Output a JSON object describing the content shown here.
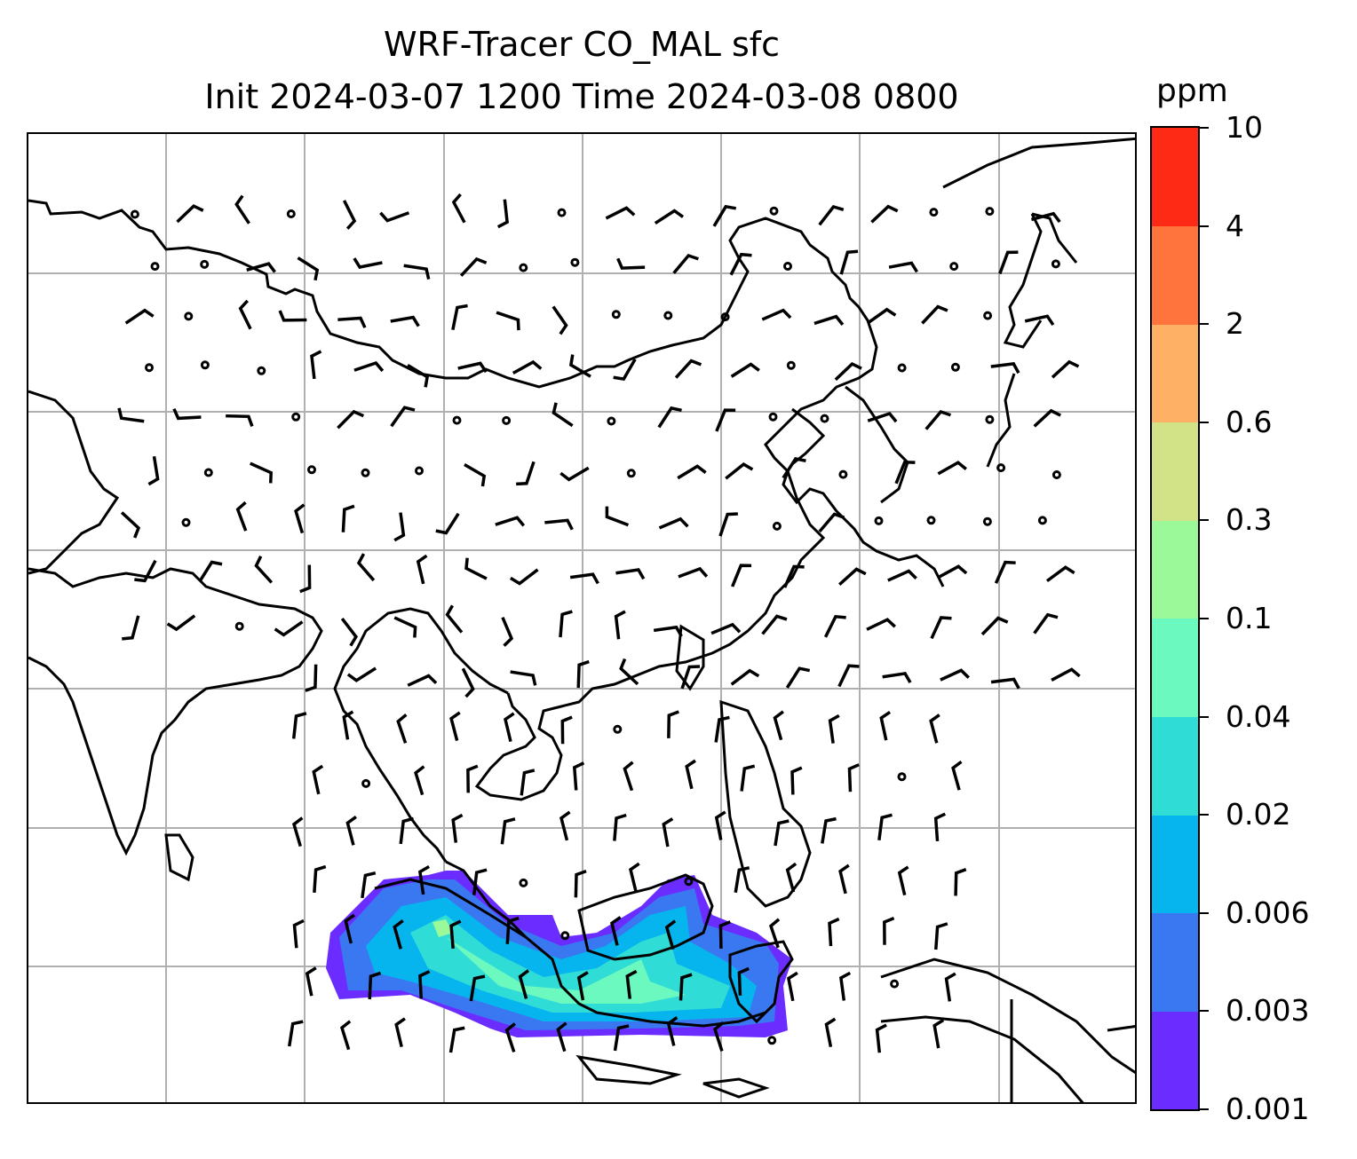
{
  "title": {
    "line1": "WRF-Tracer CO_MAL sfc",
    "line2": "Init 2024-03-07 1200 Time 2024-03-08 0800"
  },
  "colorbar": {
    "unit": "ppm",
    "ticks": [
      "0.001",
      "0.003",
      "0.006",
      "0.02",
      "0.04",
      "0.1",
      "0.3",
      "0.6",
      "2",
      "4",
      "10"
    ],
    "colors": [
      "#6a2cff",
      "#3a78f2",
      "#06b4ee",
      "#30dcd6",
      "#6cf9c0",
      "#9bf99a",
      "#d1e287",
      "#feb164",
      "#ff733c",
      "#ff2a16"
    ]
  },
  "map": {
    "coastline_color": "#000000",
    "gridline_color": "#b0b0b0",
    "barb_color": "#000000"
  }
}
